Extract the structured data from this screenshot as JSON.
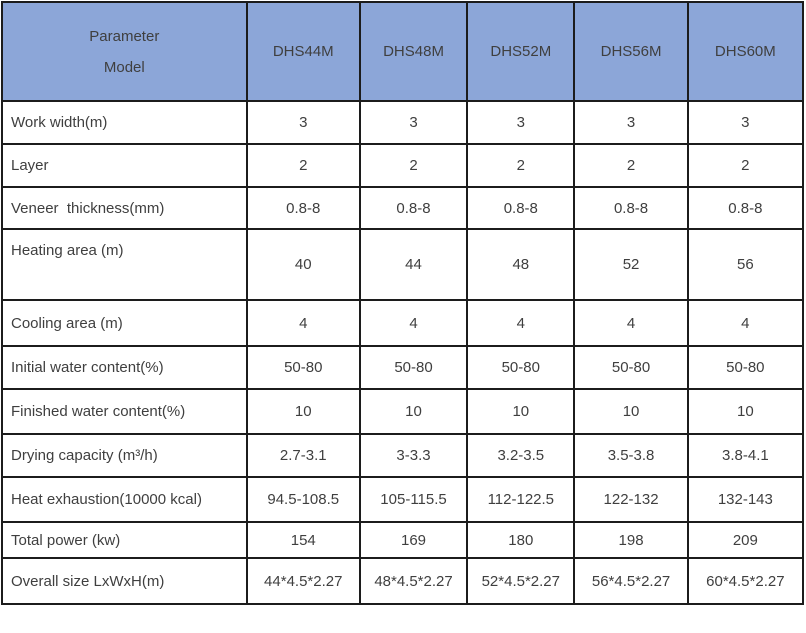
{
  "table": {
    "header": {
      "corner_top": "Parameter",
      "corner_bottom": "Model",
      "models": [
        "DHS44M",
        "DHS48M",
        "DHS52M",
        "DHS56M",
        "DHS60M"
      ]
    },
    "rows": [
      {
        "label": "Work width(m)",
        "values": [
          "3",
          "3",
          "3",
          "3",
          "3"
        ]
      },
      {
        "label": "Layer",
        "values": [
          "2",
          "2",
          "2",
          "2",
          "2"
        ]
      },
      {
        "label": "Veneer  thickness(mm)",
        "values": [
          "0.8-8",
          "0.8-8",
          "0.8-8",
          "0.8-8",
          "0.8-8"
        ]
      },
      {
        "label": "Heating area (m)",
        "values": [
          "40",
          "44",
          "48",
          "52",
          "56"
        ],
        "tall": true
      },
      {
        "label": "Cooling area (m)",
        "values": [
          "4",
          "4",
          "4",
          "4",
          "4"
        ]
      },
      {
        "label": "Initial water content(%)",
        "values": [
          "50-80",
          "50-80",
          "50-80",
          "50-80",
          "50-80"
        ]
      },
      {
        "label": "Finished water content(%)",
        "values": [
          "10",
          "10",
          "10",
          "10",
          "10"
        ]
      },
      {
        "label": "Drying capacity (m³/h)",
        "values": [
          "2.7-3.1",
          "3-3.3",
          "3.2-3.5",
          "3.5-3.8",
          "3.8-4.1"
        ]
      },
      {
        "label": "Heat exhaustion(10000 kcal)",
        "values": [
          "94.5-108.5",
          "105-115.5",
          "112-122.5",
          "122-132",
          "132-143"
        ]
      },
      {
        "label": "Total power (kw)",
        "values": [
          "154",
          "169",
          "180",
          "198",
          "209"
        ]
      },
      {
        "label": "Overall size LxWxH(m)",
        "values": [
          "44*4.5*2.27",
          "48*4.5*2.27",
          "52*4.5*2.27",
          "56*4.5*2.27",
          "60*4.5*2.27"
        ]
      }
    ],
    "colors": {
      "header_bg": "#8ca6d8",
      "border": "#1c1c1c",
      "text": "#3f3f3f"
    }
  }
}
